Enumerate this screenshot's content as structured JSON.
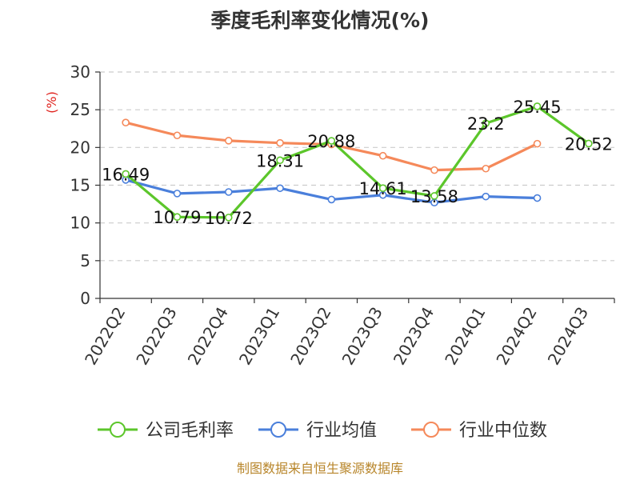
{
  "chart_data": {
    "type": "line",
    "title": "季度毛利率变化情况(%)",
    "ylabel": "(%)",
    "xlabel": "",
    "categories": [
      "2022Q2",
      "2022Q3",
      "2022Q4",
      "2023Q1",
      "2023Q2",
      "2023Q3",
      "2023Q4",
      "2024Q1",
      "2024Q2",
      "2024Q3"
    ],
    "ylim": [
      0,
      30
    ],
    "yticks": [
      0,
      5,
      10,
      15,
      20,
      25,
      30
    ],
    "grid": true,
    "legend_position": "bottom",
    "series": [
      {
        "name": "公司毛利率",
        "color": "#5cc62b",
        "values": [
          16.49,
          10.79,
          10.72,
          18.31,
          20.88,
          14.61,
          13.58,
          23.2,
          25.45,
          20.52
        ],
        "labels": [
          "16.49",
          "10.79",
          "10.72",
          "18.31",
          "20.88",
          "14.61",
          "13.58",
          "23.2",
          "25.45",
          "20.52"
        ]
      },
      {
        "name": "行业均值",
        "color": "#4a7fdb",
        "values": [
          15.7,
          13.9,
          14.1,
          14.6,
          13.1,
          13.7,
          12.7,
          13.5,
          13.3,
          null
        ]
      },
      {
        "name": "行业中位数",
        "color": "#f5895a",
        "values": [
          23.3,
          21.6,
          20.9,
          20.6,
          20.4,
          18.9,
          17.0,
          17.2,
          20.5,
          null
        ]
      }
    ]
  },
  "footer": {
    "source": "制图数据来自恒生聚源数据库"
  }
}
